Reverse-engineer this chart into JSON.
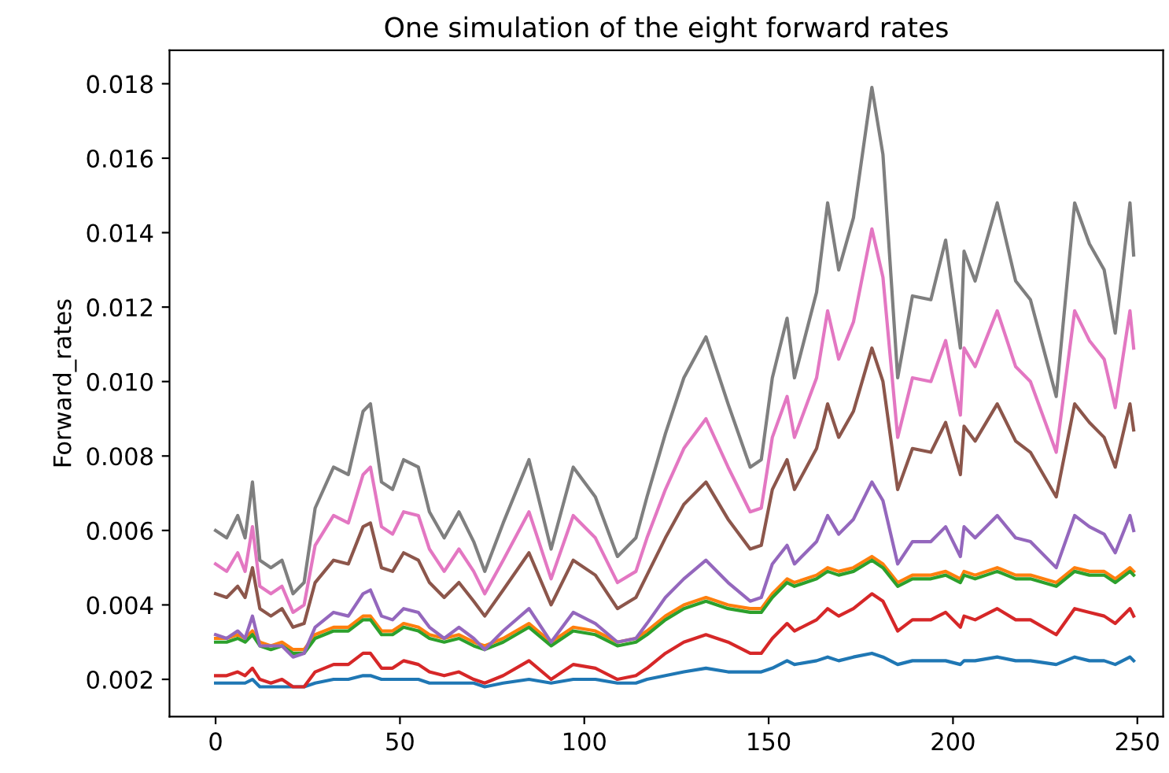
{
  "chart_data": {
    "type": "line",
    "title": "One simulation of the eight forward rates",
    "ylabel": "Forward_rates",
    "x": [
      0,
      3,
      6,
      8,
      10,
      12,
      15,
      18,
      21,
      24,
      27,
      32,
      36,
      40,
      42,
      45,
      48,
      51,
      55,
      58,
      62,
      66,
      70,
      73,
      78,
      85,
      91,
      97,
      103,
      109,
      114,
      117,
      122,
      127,
      133,
      139,
      145,
      148,
      151,
      155,
      157,
      163,
      166,
      169,
      173,
      178,
      181,
      185,
      189,
      194,
      198,
      202,
      203,
      206,
      212,
      217,
      221,
      228,
      233,
      237,
      241,
      244,
      248,
      249
    ],
    "series": [
      {
        "color": "#1f77b4",
        "values": [
          0.0019,
          0.0019,
          0.0019,
          0.0019,
          0.002,
          0.0018,
          0.0018,
          0.0018,
          0.0018,
          0.0018,
          0.0019,
          0.002,
          0.002,
          0.0021,
          0.0021,
          0.002,
          0.002,
          0.002,
          0.002,
          0.0019,
          0.0019,
          0.0019,
          0.0019,
          0.0018,
          0.0019,
          0.002,
          0.0019,
          0.002,
          0.002,
          0.0019,
          0.0019,
          0.002,
          0.0021,
          0.0022,
          0.0023,
          0.0022,
          0.0022,
          0.0022,
          0.0023,
          0.0025,
          0.0024,
          0.0025,
          0.0026,
          0.0025,
          0.0026,
          0.0027,
          0.0026,
          0.0024,
          0.0025,
          0.0025,
          0.0025,
          0.0024,
          0.0025,
          0.0025,
          0.0026,
          0.0025,
          0.0025,
          0.0024,
          0.0026,
          0.0025,
          0.0025,
          0.0024,
          0.0026,
          0.0025
        ]
      },
      {
        "color": "#ff7f0e",
        "values": [
          0.0031,
          0.0031,
          0.0032,
          0.0031,
          0.0033,
          0.003,
          0.0029,
          0.003,
          0.0028,
          0.0028,
          0.0032,
          0.0034,
          0.0034,
          0.0037,
          0.0037,
          0.0033,
          0.0033,
          0.0035,
          0.0034,
          0.0032,
          0.0031,
          0.0032,
          0.003,
          0.0029,
          0.0031,
          0.0035,
          0.003,
          0.0034,
          0.0033,
          0.003,
          0.0031,
          0.0033,
          0.0037,
          0.004,
          0.0042,
          0.004,
          0.0039,
          0.0039,
          0.0043,
          0.0047,
          0.0046,
          0.0048,
          0.005,
          0.0049,
          0.005,
          0.0053,
          0.0051,
          0.0046,
          0.0048,
          0.0048,
          0.0049,
          0.0047,
          0.0049,
          0.0048,
          0.005,
          0.0048,
          0.0048,
          0.0046,
          0.005,
          0.0049,
          0.0049,
          0.0047,
          0.005,
          0.0049
        ]
      },
      {
        "color": "#2ca02c",
        "values": [
          0.003,
          0.003,
          0.0031,
          0.003,
          0.0032,
          0.0029,
          0.0028,
          0.0029,
          0.0027,
          0.0027,
          0.0031,
          0.0033,
          0.0033,
          0.0036,
          0.0036,
          0.0032,
          0.0032,
          0.0034,
          0.0033,
          0.0031,
          0.003,
          0.0031,
          0.0029,
          0.0028,
          0.003,
          0.0034,
          0.0029,
          0.0033,
          0.0032,
          0.0029,
          0.003,
          0.0032,
          0.0036,
          0.0039,
          0.0041,
          0.0039,
          0.0038,
          0.0038,
          0.0042,
          0.0046,
          0.0045,
          0.0047,
          0.0049,
          0.0048,
          0.0049,
          0.0052,
          0.005,
          0.0045,
          0.0047,
          0.0047,
          0.0048,
          0.0046,
          0.0048,
          0.0047,
          0.0049,
          0.0047,
          0.0047,
          0.0045,
          0.0049,
          0.0048,
          0.0048,
          0.0046,
          0.0049,
          0.0048
        ]
      },
      {
        "color": "#d62728",
        "values": [
          0.0021,
          0.0021,
          0.0022,
          0.0021,
          0.0023,
          0.002,
          0.0019,
          0.002,
          0.0018,
          0.0018,
          0.0022,
          0.0024,
          0.0024,
          0.0027,
          0.0027,
          0.0023,
          0.0023,
          0.0025,
          0.0024,
          0.0022,
          0.0021,
          0.0022,
          0.002,
          0.0019,
          0.0021,
          0.0025,
          0.002,
          0.0024,
          0.0023,
          0.002,
          0.0021,
          0.0023,
          0.0027,
          0.003,
          0.0032,
          0.003,
          0.0027,
          0.0027,
          0.0031,
          0.0035,
          0.0033,
          0.0036,
          0.0039,
          0.0037,
          0.0039,
          0.0043,
          0.0041,
          0.0033,
          0.0036,
          0.0036,
          0.0038,
          0.0034,
          0.0037,
          0.0036,
          0.0039,
          0.0036,
          0.0036,
          0.0032,
          0.0039,
          0.0038,
          0.0037,
          0.0035,
          0.0039,
          0.0037
        ]
      },
      {
        "color": "#9467bd",
        "values": [
          0.0032,
          0.0031,
          0.0033,
          0.0031,
          0.0037,
          0.0029,
          0.0029,
          0.0029,
          0.0026,
          0.0027,
          0.0034,
          0.0038,
          0.0037,
          0.0043,
          0.0044,
          0.0037,
          0.0036,
          0.0039,
          0.0038,
          0.0034,
          0.0031,
          0.0034,
          0.0031,
          0.0028,
          0.0033,
          0.0039,
          0.003,
          0.0038,
          0.0035,
          0.003,
          0.0031,
          0.0035,
          0.0042,
          0.0047,
          0.0052,
          0.0046,
          0.0041,
          0.0042,
          0.0051,
          0.0056,
          0.0051,
          0.0057,
          0.0064,
          0.0059,
          0.0063,
          0.0073,
          0.0068,
          0.0051,
          0.0057,
          0.0057,
          0.0061,
          0.0053,
          0.0061,
          0.0058,
          0.0064,
          0.0058,
          0.0057,
          0.005,
          0.0064,
          0.0061,
          0.0059,
          0.0054,
          0.0064,
          0.006
        ]
      },
      {
        "color": "#8c564b",
        "values": [
          0.0043,
          0.0042,
          0.0045,
          0.0042,
          0.005,
          0.0039,
          0.0037,
          0.0039,
          0.0034,
          0.0035,
          0.0046,
          0.0052,
          0.0051,
          0.0061,
          0.0062,
          0.005,
          0.0049,
          0.0054,
          0.0052,
          0.0046,
          0.0042,
          0.0046,
          0.0041,
          0.0037,
          0.0044,
          0.0054,
          0.004,
          0.0052,
          0.0048,
          0.0039,
          0.0042,
          0.0048,
          0.0058,
          0.0067,
          0.0073,
          0.0063,
          0.0055,
          0.0056,
          0.0071,
          0.0079,
          0.0071,
          0.0082,
          0.0094,
          0.0085,
          0.0092,
          0.0109,
          0.01,
          0.0071,
          0.0082,
          0.0081,
          0.0089,
          0.0075,
          0.0088,
          0.0084,
          0.0094,
          0.0084,
          0.0081,
          0.0069,
          0.0094,
          0.0089,
          0.0085,
          0.0077,
          0.0094,
          0.0087
        ]
      },
      {
        "color": "#e377c2",
        "values": [
          0.0051,
          0.0049,
          0.0054,
          0.0049,
          0.0061,
          0.0045,
          0.0043,
          0.0045,
          0.0038,
          0.004,
          0.0056,
          0.0064,
          0.0062,
          0.0075,
          0.0077,
          0.0061,
          0.0059,
          0.0065,
          0.0064,
          0.0055,
          0.0049,
          0.0055,
          0.0049,
          0.0043,
          0.0052,
          0.0065,
          0.0047,
          0.0064,
          0.0058,
          0.0046,
          0.0049,
          0.0058,
          0.0071,
          0.0082,
          0.009,
          0.0077,
          0.0065,
          0.0066,
          0.0085,
          0.0096,
          0.0085,
          0.0101,
          0.0119,
          0.0106,
          0.0116,
          0.0141,
          0.0128,
          0.0085,
          0.0101,
          0.01,
          0.0111,
          0.0091,
          0.0109,
          0.0104,
          0.0119,
          0.0104,
          0.01,
          0.0081,
          0.0119,
          0.0111,
          0.0106,
          0.0093,
          0.0119,
          0.0109
        ]
      },
      {
        "color": "#7f7f7f",
        "values": [
          0.006,
          0.0058,
          0.0064,
          0.0058,
          0.0073,
          0.0052,
          0.005,
          0.0052,
          0.0043,
          0.0046,
          0.0066,
          0.0077,
          0.0075,
          0.0092,
          0.0094,
          0.0073,
          0.0071,
          0.0079,
          0.0077,
          0.0065,
          0.0058,
          0.0065,
          0.0057,
          0.0049,
          0.0062,
          0.0079,
          0.0055,
          0.0077,
          0.0069,
          0.0053,
          0.0058,
          0.0069,
          0.0086,
          0.0101,
          0.0112,
          0.0094,
          0.0077,
          0.0079,
          0.0101,
          0.0117,
          0.0101,
          0.0124,
          0.0148,
          0.013,
          0.0144,
          0.0179,
          0.0161,
          0.0101,
          0.0123,
          0.0122,
          0.0138,
          0.0109,
          0.0135,
          0.0127,
          0.0148,
          0.0127,
          0.0122,
          0.0096,
          0.0148,
          0.0137,
          0.013,
          0.0113,
          0.0148,
          0.0134
        ]
      }
    ],
    "xlim": [
      -12.5,
      257
    ],
    "ylim": [
      0.001,
      0.0189
    ],
    "xticks": [
      0,
      50,
      100,
      150,
      200,
      250
    ],
    "yticks": [
      {
        "value": 0.002,
        "label": "0.002"
      },
      {
        "value": 0.004,
        "label": "0.004"
      },
      {
        "value": 0.006,
        "label": "0.006"
      },
      {
        "value": 0.008,
        "label": "0.008"
      },
      {
        "value": 0.01,
        "label": "0.010"
      },
      {
        "value": 0.012,
        "label": "0.012"
      },
      {
        "value": 0.014,
        "label": "0.014"
      },
      {
        "value": 0.016,
        "label": "0.016"
      },
      {
        "value": 0.018,
        "label": "0.018"
      }
    ],
    "grid": false,
    "legend": false
  }
}
